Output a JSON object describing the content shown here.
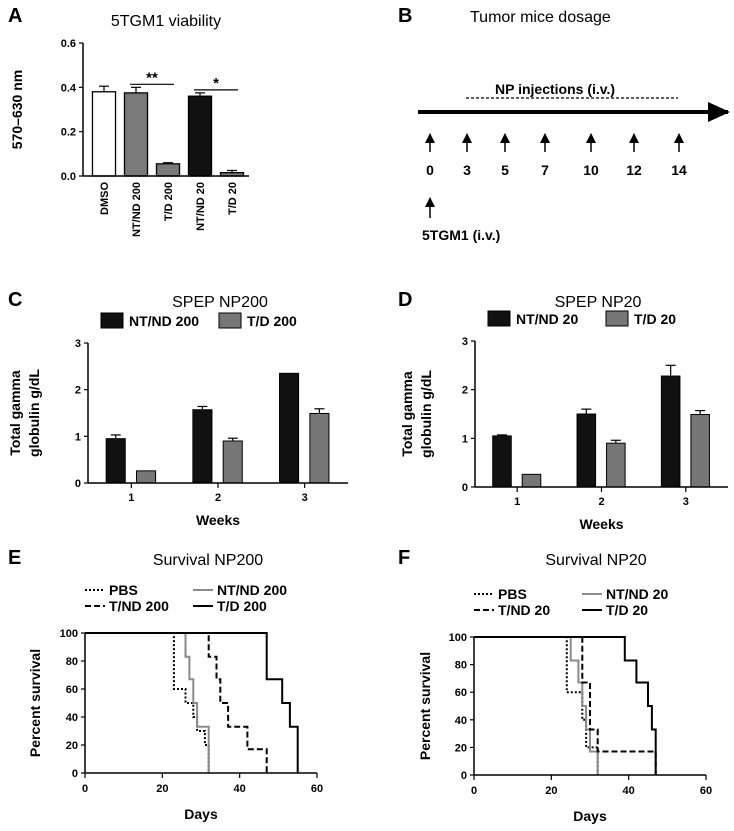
{
  "panels": {
    "A": {
      "label": "A"
    },
    "B": {
      "label": "B"
    },
    "C": {
      "label": "C"
    },
    "D": {
      "label": "D"
    },
    "E": {
      "label": "E"
    },
    "F": {
      "label": "F"
    }
  },
  "timeline": {
    "title": "Tumor mice dosage",
    "injection_label": "NP injections (i.v.)",
    "days": [
      "0",
      "3",
      "5",
      "7",
      "10",
      "12",
      "14"
    ],
    "tumor_label": "5TGM1 (i.v.)"
  },
  "chart_data": [
    {
      "id": "A",
      "type": "bar",
      "title": "5TGM1 viability",
      "ylabel": "570–630 nm",
      "xlabel": "",
      "ylim": [
        0,
        0.6
      ],
      "yticks": [
        "0.0",
        "0.2",
        "0.4",
        "0.6"
      ],
      "categories": [
        "DMSO",
        "NT/ND 200",
        "T/D 200",
        "NT/ND 20",
        "T/D 20"
      ],
      "values": [
        0.38,
        0.375,
        0.055,
        0.36,
        0.015
      ],
      "errors": [
        0.025,
        0.025,
        0.005,
        0.015,
        0.01
      ],
      "colors": [
        "#ffffff",
        "#7a7a7a",
        "#7a7a7a",
        "#111111",
        "#7a7a7a"
      ],
      "significance": [
        {
          "text": "**",
          "from": 1,
          "to": 2
        },
        {
          "text": "*",
          "from": 3,
          "to": 4
        }
      ]
    },
    {
      "id": "C",
      "type": "bar",
      "title": "SPEP NP200",
      "ylabel": "Total gamma globulin g/dL",
      "ylabel_lines": [
        "Total gamma",
        "globulin g/dL"
      ],
      "xlabel": "Weeks",
      "ylim": [
        0,
        3
      ],
      "yticks": [
        "0",
        "1",
        "2",
        "3"
      ],
      "categories": [
        "1",
        "2",
        "3"
      ],
      "series": [
        {
          "name": "NT/ND 200",
          "color": "#111111",
          "values": [
            0.95,
            1.57,
            2.35
          ],
          "errors": [
            0.08,
            0.07,
            0.0
          ]
        },
        {
          "name": "T/D 200",
          "color": "#777777",
          "values": [
            0.26,
            0.9,
            1.49
          ],
          "errors": [
            0.0,
            0.06,
            0.1
          ]
        }
      ]
    },
    {
      "id": "D",
      "type": "bar",
      "title": "SPEP NP20",
      "ylabel": "Total gamma globulin g/dL",
      "ylabel_lines": [
        "Total gamma",
        "globulin g/dL"
      ],
      "xlabel": "Weeks",
      "ylim": [
        0,
        3
      ],
      "yticks": [
        "0",
        "1",
        "2",
        "3"
      ],
      "categories": [
        "1",
        "2",
        "3"
      ],
      "series": [
        {
          "name": "NT/ND 20",
          "color": "#111111",
          "values": [
            1.05,
            1.5,
            2.28
          ],
          "errors": [
            0.02,
            0.1,
            0.22
          ]
        },
        {
          "name": "T/D 20",
          "color": "#777777",
          "values": [
            0.26,
            0.9,
            1.49
          ],
          "errors": [
            0.0,
            0.06,
            0.08
          ]
        }
      ]
    },
    {
      "id": "E",
      "type": "line",
      "title": "Survival NP200",
      "ylabel": "Percent survival",
      "xlabel": "Days",
      "xlim": [
        0,
        60
      ],
      "ylim": [
        0,
        100
      ],
      "xticks": [
        "0",
        "20",
        "40",
        "60"
      ],
      "yticks": [
        "0",
        "20",
        "40",
        "60",
        "80",
        "100"
      ],
      "series": [
        {
          "name": "PBS",
          "style": "dotted",
          "color": "#000000",
          "x": [
            0,
            23,
            23,
            26,
            26,
            28,
            28,
            29,
            29,
            31,
            31,
            32,
            32
          ],
          "y": [
            100,
            100,
            60,
            60,
            50,
            50,
            40,
            40,
            30,
            30,
            20,
            20,
            0
          ]
        },
        {
          "name": "NT/ND 200",
          "style": "solid",
          "color": "#8a8a8a",
          "x": [
            0,
            26,
            26,
            27,
            27,
            28,
            28,
            29,
            29,
            31,
            31,
            32,
            32
          ],
          "y": [
            100,
            100,
            83,
            83,
            67,
            67,
            50,
            50,
            33,
            33,
            33,
            33,
            0
          ]
        },
        {
          "name": "T/ND 200",
          "style": "dashed",
          "color": "#000000",
          "x": [
            0,
            32,
            32,
            34,
            34,
            35,
            35,
            37,
            37,
            42,
            42,
            45,
            45,
            47,
            47
          ],
          "y": [
            100,
            100,
            83,
            83,
            67,
            67,
            50,
            50,
            33,
            33,
            17,
            17,
            17,
            17,
            0
          ]
        },
        {
          "name": "T/D 200",
          "style": "solid",
          "color": "#000000",
          "x": [
            0,
            47,
            47,
            51,
            51,
            53,
            53,
            54,
            54,
            55,
            55
          ],
          "y": [
            100,
            100,
            67,
            67,
            50,
            50,
            33,
            33,
            33,
            33,
            0
          ]
        }
      ]
    },
    {
      "id": "F",
      "type": "line",
      "title": "Survival NP20",
      "ylabel": "Percent survival",
      "xlabel": "Days",
      "xlim": [
        0,
        60
      ],
      "ylim": [
        0,
        100
      ],
      "xticks": [
        "0",
        "20",
        "40",
        "60"
      ],
      "yticks": [
        "0",
        "20",
        "40",
        "60",
        "80",
        "100"
      ],
      "series": [
        {
          "name": "PBS",
          "style": "dotted",
          "color": "#000000",
          "x": [
            0,
            24,
            24,
            28,
            28,
            29,
            29,
            31,
            31,
            32,
            32
          ],
          "y": [
            100,
            100,
            60,
            60,
            40,
            40,
            20,
            20,
            20,
            20,
            0
          ]
        },
        {
          "name": "NT/ND 20",
          "style": "solid",
          "color": "#8a8a8a",
          "x": [
            0,
            25,
            25,
            27,
            27,
            28,
            28,
            29,
            29,
            30,
            30,
            32,
            32
          ],
          "y": [
            100,
            100,
            83,
            83,
            67,
            67,
            50,
            50,
            33,
            33,
            17,
            17,
            0
          ]
        },
        {
          "name": "T/ND 20",
          "style": "dashed",
          "color": "#000000",
          "x": [
            0,
            28,
            28,
            30,
            30,
            32,
            32,
            33,
            33,
            47,
            47
          ],
          "y": [
            100,
            100,
            67,
            67,
            33,
            33,
            17,
            17,
            17,
            17,
            0
          ]
        },
        {
          "name": "T/D 20",
          "style": "solid",
          "color": "#000000",
          "x": [
            0,
            39,
            39,
            42,
            42,
            45,
            45,
            46,
            46,
            47,
            47
          ],
          "y": [
            100,
            100,
            83,
            83,
            67,
            67,
            50,
            50,
            33,
            33,
            0
          ]
        }
      ]
    }
  ]
}
